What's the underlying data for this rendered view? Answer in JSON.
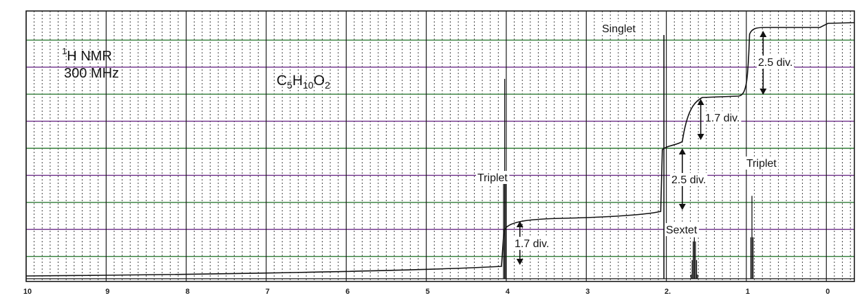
{
  "chart_data": {
    "type": "line",
    "spectrum": "1H NMR",
    "field_label": "300 MHz",
    "formula": {
      "base": "C",
      "sub1": "5",
      "mid1": "H",
      "sub2": "10",
      "mid2": "O",
      "sub3": "2"
    },
    "x_axis": {
      "ticks": [
        10,
        9,
        8,
        7,
        6,
        5,
        4,
        3,
        2,
        1,
        0
      ],
      "tick_labels": [
        "10",
        "9",
        "8",
        "7",
        "6",
        "5",
        "4",
        "3",
        "2.",
        "1",
        "0"
      ],
      "xlim": [
        10,
        -0.35
      ],
      "reversed": true
    },
    "grid": true,
    "grid_colors": {
      "major_vertical": "#1a1a1a",
      "minor_vertical": "#2a2a2a",
      "horizontal": [
        "#6a2a86",
        "#2e7a34"
      ]
    },
    "peaks": [
      {
        "shift": 4.02,
        "multiplicity": "Triplet",
        "height": 0.82
      },
      {
        "shift": 2.03,
        "multiplicity": "Singlet",
        "height": 1.0
      },
      {
        "shift": 1.65,
        "multiplicity": "Sextet",
        "height": 0.17
      },
      {
        "shift": 0.93,
        "multiplicity": "Triplet",
        "height": 0.34
      }
    ],
    "annotations": [
      {
        "text": "Triplet",
        "shift": 4.02
      },
      {
        "text": "Singlet",
        "shift": 2.03
      },
      {
        "text": "Sextet",
        "shift": 1.65
      },
      {
        "text": "Triplet",
        "shift": 0.93
      }
    ],
    "integrals": [
      {
        "shift": 4.02,
        "label": "1.7 div."
      },
      {
        "shift": 2.03,
        "label": "2.5 div."
      },
      {
        "shift": 1.65,
        "label": "1.7 div."
      },
      {
        "shift": 0.93,
        "label": "2.5 div."
      }
    ]
  }
}
